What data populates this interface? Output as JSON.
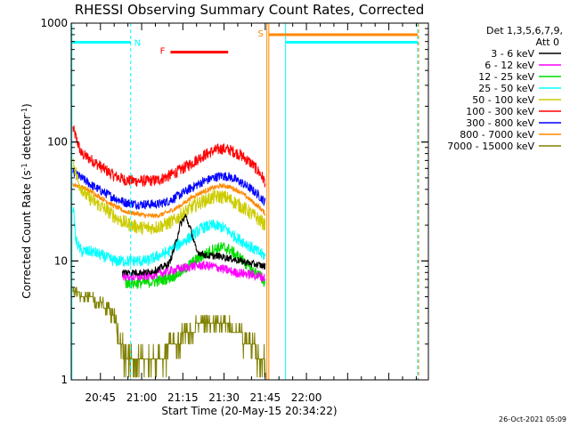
{
  "chart_data": {
    "type": "line",
    "title": "RHESSI Observing Summary Count Rates, Corrected",
    "xlabel": "Start Time (20-May-15 20:34:22)",
    "ylabel": "Corrected Count Rate (s",
    "ylabel_sup1": "-1",
    "ylabel_mid": " detector",
    "ylabel_sup2": "-1",
    "ylabel_end": ")",
    "yscale": "log",
    "ylim": [
      1,
      1000
    ],
    "xlim_minutes": [
      34.37,
      164.4
    ],
    "x_ticks": [
      {
        "m": 45,
        "label": "20:45"
      },
      {
        "m": 60,
        "label": "21:00"
      },
      {
        "m": 75,
        "label": "21:15"
      },
      {
        "m": 90,
        "label": "21:30"
      },
      {
        "m": 105,
        "label": "21:45"
      },
      {
        "m": 120,
        "label": "22:00"
      }
    ],
    "y_ticks": [
      {
        "v": 1,
        "label": "1"
      },
      {
        "v": 10,
        "label": "10"
      },
      {
        "v": 100,
        "label": "100"
      },
      {
        "v": 1000,
        "label": "1000"
      }
    ],
    "legend": {
      "header1": "Det 1,3,5,6,7,9,",
      "header2": "Att 0",
      "entries": [
        {
          "label": "3 - 6 keV",
          "color": "#000000"
        },
        {
          "label": "6 - 12 keV",
          "color": "#ff00ff"
        },
        {
          "label": "12 - 25 keV",
          "color": "#00dd00"
        },
        {
          "label": "25 - 50 keV",
          "color": "#00ffff"
        },
        {
          "label": "50 - 100 keV",
          "color": "#cccc00"
        },
        {
          "label": "100 - 300 keV",
          "color": "#ff0000"
        },
        {
          "label": "300 - 800 keV",
          "color": "#0000ff"
        },
        {
          "label": "800 - 7000 keV",
          "color": "#ff8800"
        },
        {
          "label": "7000 - 15000 keV",
          "color": "#808000"
        }
      ]
    },
    "series": [
      {
        "name": "100 - 300 keV",
        "color": "#ff0000",
        "jitter": 0.05,
        "points": [
          [
            35,
            130
          ],
          [
            38,
            80
          ],
          [
            42,
            70
          ],
          [
            46,
            60
          ],
          [
            50,
            52
          ],
          [
            54,
            48
          ],
          [
            58,
            47
          ],
          [
            62,
            47
          ],
          [
            66,
            48
          ],
          [
            70,
            52
          ],
          [
            74,
            58
          ],
          [
            78,
            66
          ],
          [
            82,
            76
          ],
          [
            86,
            84
          ],
          [
            89,
            88
          ],
          [
            92,
            86
          ],
          [
            96,
            78
          ],
          [
            100,
            66
          ],
          [
            103,
            55
          ],
          [
            105,
            46
          ]
        ]
      },
      {
        "name": "300 - 800 keV",
        "color": "#0000ff",
        "jitter": 0.04,
        "points": [
          [
            35,
            55
          ],
          [
            38,
            50
          ],
          [
            42,
            43
          ],
          [
            46,
            38
          ],
          [
            50,
            34
          ],
          [
            54,
            31
          ],
          [
            58,
            30
          ],
          [
            62,
            30
          ],
          [
            66,
            30
          ],
          [
            70,
            32
          ],
          [
            74,
            36
          ],
          [
            78,
            41
          ],
          [
            82,
            46
          ],
          [
            86,
            50
          ],
          [
            89,
            52
          ],
          [
            92,
            51
          ],
          [
            96,
            46
          ],
          [
            100,
            40
          ],
          [
            103,
            35
          ],
          [
            105,
            31
          ]
        ]
      },
      {
        "name": "800 - 7000 keV",
        "color": "#ff8800",
        "jitter": 0.02,
        "points": [
          [
            35,
            44
          ],
          [
            38,
            42
          ],
          [
            42,
            38
          ],
          [
            46,
            33
          ],
          [
            50,
            29
          ],
          [
            54,
            26
          ],
          [
            58,
            25
          ],
          [
            62,
            24
          ],
          [
            66,
            24
          ],
          [
            70,
            26
          ],
          [
            74,
            29
          ],
          [
            78,
            34
          ],
          [
            82,
            38
          ],
          [
            86,
            41
          ],
          [
            89,
            43
          ],
          [
            92,
            42
          ],
          [
            96,
            38
          ],
          [
            100,
            32
          ],
          [
            103,
            28
          ],
          [
            105,
            25
          ]
        ]
      },
      {
        "name": "50 - 100 keV",
        "color": "#cccc00",
        "jitter": 0.06,
        "points": [
          [
            35,
            70
          ],
          [
            37,
            45
          ],
          [
            40,
            35
          ],
          [
            44,
            30
          ],
          [
            48,
            26
          ],
          [
            52,
            22
          ],
          [
            56,
            20
          ],
          [
            60,
            19
          ],
          [
            64,
            19
          ],
          [
            68,
            20
          ],
          [
            72,
            22
          ],
          [
            76,
            26
          ],
          [
            80,
            30
          ],
          [
            84,
            33
          ],
          [
            88,
            35
          ],
          [
            91,
            34
          ],
          [
            95,
            30
          ],
          [
            99,
            26
          ],
          [
            103,
            22
          ],
          [
            105,
            20
          ]
        ]
      },
      {
        "name": "25 - 50 keV",
        "color": "#00ffff",
        "jitter": 0.05,
        "points": [
          [
            35,
            30
          ],
          [
            36,
            15
          ],
          [
            38,
            12
          ],
          [
            42,
            12
          ],
          [
            46,
            11
          ],
          [
            50,
            10
          ],
          [
            54,
            10
          ],
          [
            58,
            10
          ],
          [
            62,
            10
          ],
          [
            66,
            11
          ],
          [
            70,
            12
          ],
          [
            74,
            14
          ],
          [
            78,
            16
          ],
          [
            82,
            19
          ],
          [
            86,
            20
          ],
          [
            90,
            19
          ],
          [
            94,
            16
          ],
          [
            98,
            14
          ],
          [
            102,
            12
          ],
          [
            105,
            11
          ]
        ]
      },
      {
        "name": "12 - 25 keV",
        "color": "#00dd00",
        "jitter": 0.05,
        "points": [
          [
            54,
            6.5
          ],
          [
            58,
            6.5
          ],
          [
            62,
            6.6
          ],
          [
            66,
            6.8
          ],
          [
            70,
            7.2
          ],
          [
            74,
            8
          ],
          [
            78,
            9.5
          ],
          [
            82,
            11
          ],
          [
            86,
            12.5
          ],
          [
            89,
            13
          ],
          [
            92,
            12.5
          ],
          [
            96,
            10.5
          ],
          [
            100,
            8.5
          ],
          [
            103,
            7.5
          ],
          [
            105,
            6.5
          ]
        ]
      },
      {
        "name": "6 - 12 keV",
        "color": "#ff00ff",
        "jitter": 0.04,
        "points": [
          [
            53,
            7.5
          ],
          [
            58,
            7.3
          ],
          [
            62,
            7.5
          ],
          [
            66,
            7.8
          ],
          [
            70,
            8.2
          ],
          [
            74,
            8.6
          ],
          [
            78,
            9
          ],
          [
            82,
            9.2
          ],
          [
            86,
            9
          ],
          [
            90,
            8.5
          ],
          [
            94,
            8
          ],
          [
            98,
            7.8
          ],
          [
            102,
            7.5
          ],
          [
            105,
            7.2
          ]
        ]
      },
      {
        "name": "3 - 6 keV",
        "color": "#000000",
        "jitter": 0.03,
        "points": [
          [
            53,
            8
          ],
          [
            58,
            8
          ],
          [
            62,
            8
          ],
          [
            66,
            8.5
          ],
          [
            70,
            9.5
          ],
          [
            72,
            13
          ],
          [
            74,
            20
          ],
          [
            76,
            24
          ],
          [
            78,
            18
          ],
          [
            80,
            12
          ],
          [
            84,
            11
          ],
          [
            88,
            11
          ],
          [
            92,
            10.5
          ],
          [
            96,
            10
          ],
          [
            100,
            9.5
          ],
          [
            105,
            9
          ]
        ]
      },
      {
        "name": "7000 - 15000 keV",
        "color": "#808000",
        "jitter": 0.0,
        "points": [
          [
            35,
            5.5
          ],
          [
            40,
            5
          ],
          [
            45,
            4.5
          ],
          [
            50,
            3.5
          ],
          [
            52,
            2
          ],
          [
            54,
            1.6
          ],
          [
            58,
            1.5
          ],
          [
            62,
            1.5
          ],
          [
            66,
            1.6
          ],
          [
            70,
            1.8
          ],
          [
            74,
            2.2
          ],
          [
            78,
            2.6
          ],
          [
            82,
            3
          ],
          [
            86,
            3.2
          ],
          [
            90,
            3
          ],
          [
            94,
            2.6
          ],
          [
            98,
            2.1
          ],
          [
            102,
            1.7
          ],
          [
            105,
            1.5
          ]
        ]
      }
    ],
    "intervals": [
      {
        "label": "",
        "color": "#00ffff",
        "x1": 34.4,
        "x2": 56.0,
        "y": 690,
        "dash_edges": true
      },
      {
        "label": "N",
        "color": "#00ffff",
        "x_label": 58.5,
        "y": 690
      },
      {
        "label": "F",
        "color": "#ff0000",
        "x1": 70.5,
        "x2": 91.5,
        "y": 570
      },
      {
        "label": "S",
        "color": "#ff8800",
        "x1": 106.3,
        "x2": 160.5,
        "y": 800
      },
      {
        "label": "",
        "color": "#00ffff",
        "x1": 112.4,
        "x2": 160.5,
        "y": 690
      }
    ],
    "verticals": [
      {
        "color": "#00ffff",
        "m": 34.6,
        "dashed": false
      },
      {
        "color": "#00ffff",
        "m": 56.0,
        "dashed": true
      },
      {
        "color": "#ff8800",
        "m": 105.6,
        "dashed": false
      },
      {
        "color": "#ff8800",
        "m": 106.3,
        "dashed": false
      },
      {
        "color": "#00ffff",
        "m": 112.4,
        "dashed": false
      },
      {
        "color": "#00ffff",
        "m": 160.5,
        "dashed": true
      },
      {
        "color": "#ff8800",
        "m": 160.8,
        "dashed": true
      }
    ]
  },
  "footer": "26-Oct-2021 05:09"
}
